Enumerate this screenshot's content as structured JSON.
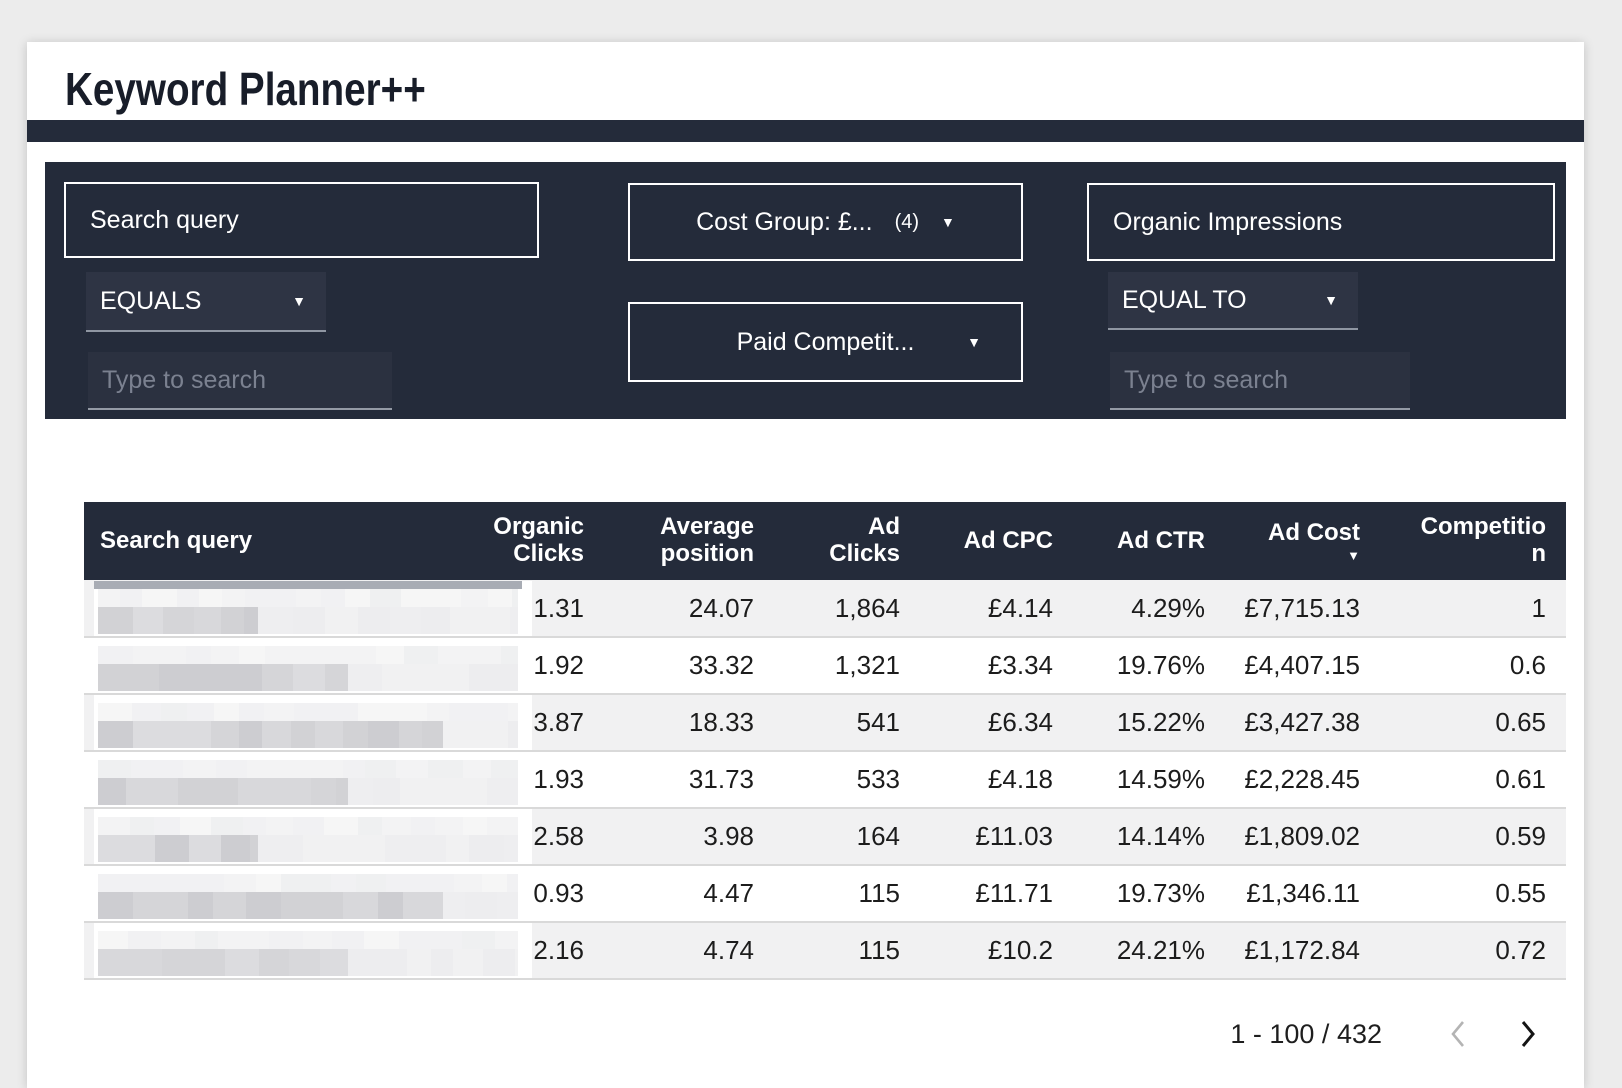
{
  "app": {
    "title": "Keyword Planner++"
  },
  "icons": {
    "dropdown_caret": "▼",
    "sort_desc_caret": "▼",
    "prev_chevron": "‹",
    "next_chevron": "›"
  },
  "colors": {
    "navy": "#242b3a",
    "panel_input_bg": "#2e3444",
    "underline_gray": "#8f96a2",
    "placeholder_gray": "#7b8190",
    "row_stripe": "#f1f1f2",
    "row_divider": "#d9d9d9",
    "redaction_bar": "#a8acb4"
  },
  "filter_panel": {
    "search_query_group": {
      "field_label": "Search query",
      "operator_value": "EQUALS",
      "input_value": "",
      "input_placeholder": "Type to search"
    },
    "cost_group_dropdown": {
      "label": "Cost Group: £...",
      "count": "(4)"
    },
    "paid_competition_dropdown": {
      "label": "Paid Competit..."
    },
    "organic_impressions_group": {
      "field_label": "Organic Impressions",
      "operator_value": "EQUAL TO",
      "input_value": "",
      "input_placeholder": "Type to search"
    }
  },
  "table": {
    "columns": [
      "Search query",
      "Organic Clicks",
      "Average position",
      "Ad Clicks",
      "Ad CPC",
      "Ad CTR",
      "Ad Cost",
      "Competition"
    ],
    "sort": {
      "column": "Ad Cost",
      "direction": "desc"
    },
    "rows": [
      {
        "search_query_redacted": true,
        "organic_clicks": "1.31",
        "average_position": "24.07",
        "ad_clicks": "1,864",
        "ad_cpc": "£4.14",
        "ad_ctr": "4.29%",
        "ad_cost": "£7,715.13",
        "competition": "1"
      },
      {
        "search_query_redacted": true,
        "organic_clicks": "1.92",
        "average_position": "33.32",
        "ad_clicks": "1,321",
        "ad_cpc": "£3.34",
        "ad_ctr": "19.76%",
        "ad_cost": "£4,407.15",
        "competition": "0.6"
      },
      {
        "search_query_redacted": true,
        "organic_clicks": "3.87",
        "average_position": "18.33",
        "ad_clicks": "541",
        "ad_cpc": "£6.34",
        "ad_ctr": "15.22%",
        "ad_cost": "£3,427.38",
        "competition": "0.65"
      },
      {
        "search_query_redacted": true,
        "organic_clicks": "1.93",
        "average_position": "31.73",
        "ad_clicks": "533",
        "ad_cpc": "£4.18",
        "ad_ctr": "14.59%",
        "ad_cost": "£2,228.45",
        "competition": "0.61"
      },
      {
        "search_query_redacted": true,
        "organic_clicks": "2.58",
        "average_position": "3.98",
        "ad_clicks": "164",
        "ad_cpc": "£11.03",
        "ad_ctr": "14.14%",
        "ad_cost": "£1,809.02",
        "competition": "0.59"
      },
      {
        "search_query_redacted": true,
        "organic_clicks": "0.93",
        "average_position": "4.47",
        "ad_clicks": "115",
        "ad_cpc": "£11.71",
        "ad_ctr": "19.73%",
        "ad_cost": "£1,346.11",
        "competition": "0.55"
      },
      {
        "search_query_redacted": true,
        "organic_clicks": "2.16",
        "average_position": "4.74",
        "ad_clicks": "115",
        "ad_cpc": "£10.2",
        "ad_ctr": "24.21%",
        "ad_cost": "£1,172.84",
        "competition": "0.72"
      }
    ]
  },
  "pagination": {
    "range_label": "1 - 100 / 432",
    "prev_enabled": false,
    "next_enabled": true
  }
}
